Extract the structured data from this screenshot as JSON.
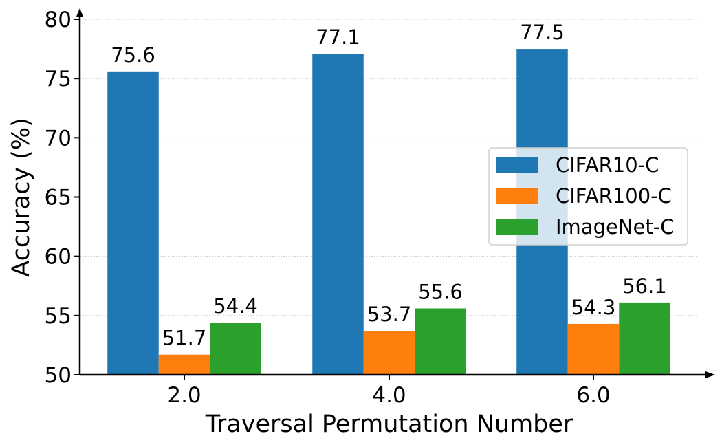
{
  "chart_data": {
    "type": "bar",
    "title": "",
    "xlabel": "Traversal Permutation Number",
    "ylabel": "Accuracy (%)",
    "categories": [
      "2.0",
      "4.0",
      "6.0"
    ],
    "ylim": [
      50,
      80
    ],
    "yticks": [
      "50",
      "55",
      "60",
      "65",
      "70",
      "75",
      "80"
    ],
    "grid": "horizontal dotted",
    "legend_position": "center-right",
    "series": [
      {
        "name": "CIFAR10-C",
        "color": "#1f77b4",
        "values": [
          75.6,
          77.1,
          77.5
        ]
      },
      {
        "name": "CIFAR100-C",
        "color": "#ff7f0e",
        "values": [
          51.7,
          53.7,
          54.3
        ]
      },
      {
        "name": "ImageNet-C",
        "color": "#2ca02c",
        "values": [
          54.4,
          55.6,
          56.1
        ]
      }
    ]
  }
}
